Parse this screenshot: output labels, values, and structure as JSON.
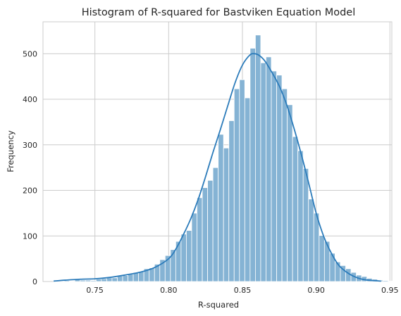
{
  "chart_data": {
    "type": "bar",
    "title": "Histogram of R-squared for Bastviken Equation Model",
    "xlabel": "R-squared",
    "ylabel": "Frequency",
    "xlim": [
      0.7148,
      0.9513
    ],
    "ylim": [
      0,
      570
    ],
    "xticks": [
      0.75,
      0.8,
      0.85,
      0.9,
      0.95
    ],
    "xtick_labels": [
      "0.75",
      "0.80",
      "0.85",
      "0.90",
      "0.95"
    ],
    "yticks": [
      0,
      100,
      200,
      300,
      400,
      500
    ],
    "ytick_labels": [
      "0",
      "100",
      "200",
      "300",
      "400",
      "500"
    ],
    "grid": true,
    "bin_start": 0.722,
    "bin_width": 0.0036,
    "values": [
      1,
      1,
      2,
      1,
      4,
      3,
      3,
      2,
      5,
      6,
      8,
      8,
      12,
      13,
      16,
      20,
      22,
      28,
      30,
      38,
      48,
      57,
      70,
      88,
      104,
      112,
      150,
      184,
      206,
      222,
      250,
      323,
      293,
      353,
      423,
      443,
      403,
      512,
      541,
      480,
      493,
      462,
      453,
      423,
      388,
      318,
      287,
      248,
      181,
      150,
      101,
      88,
      62,
      43,
      35,
      28,
      20,
      14,
      11,
      7,
      5,
      3,
      2,
      1
    ],
    "kde": {
      "x": [
        0.722,
        0.73,
        0.74,
        0.75,
        0.76,
        0.77,
        0.78,
        0.79,
        0.8,
        0.805,
        0.81,
        0.815,
        0.82,
        0.825,
        0.83,
        0.835,
        0.84,
        0.845,
        0.85,
        0.855,
        0.858,
        0.861,
        0.865,
        0.87,
        0.875,
        0.88,
        0.885,
        0.89,
        0.895,
        0.9,
        0.905,
        0.91,
        0.915,
        0.92,
        0.925,
        0.93,
        0.935,
        0.944
      ],
      "y": [
        1,
        3,
        5,
        6,
        9,
        14,
        20,
        30,
        50,
        72,
        103,
        138,
        180,
        230,
        283,
        333,
        385,
        436,
        475,
        497,
        500,
        497,
        485,
        459,
        429,
        388,
        336,
        278,
        215,
        150,
        100,
        64,
        37,
        22,
        12,
        6,
        3,
        1
      ]
    },
    "colors": {
      "bar": "#85b3d4",
      "bar_edge": "#ffffff",
      "line": "#2b7bba",
      "grid": "#cccccc"
    }
  }
}
